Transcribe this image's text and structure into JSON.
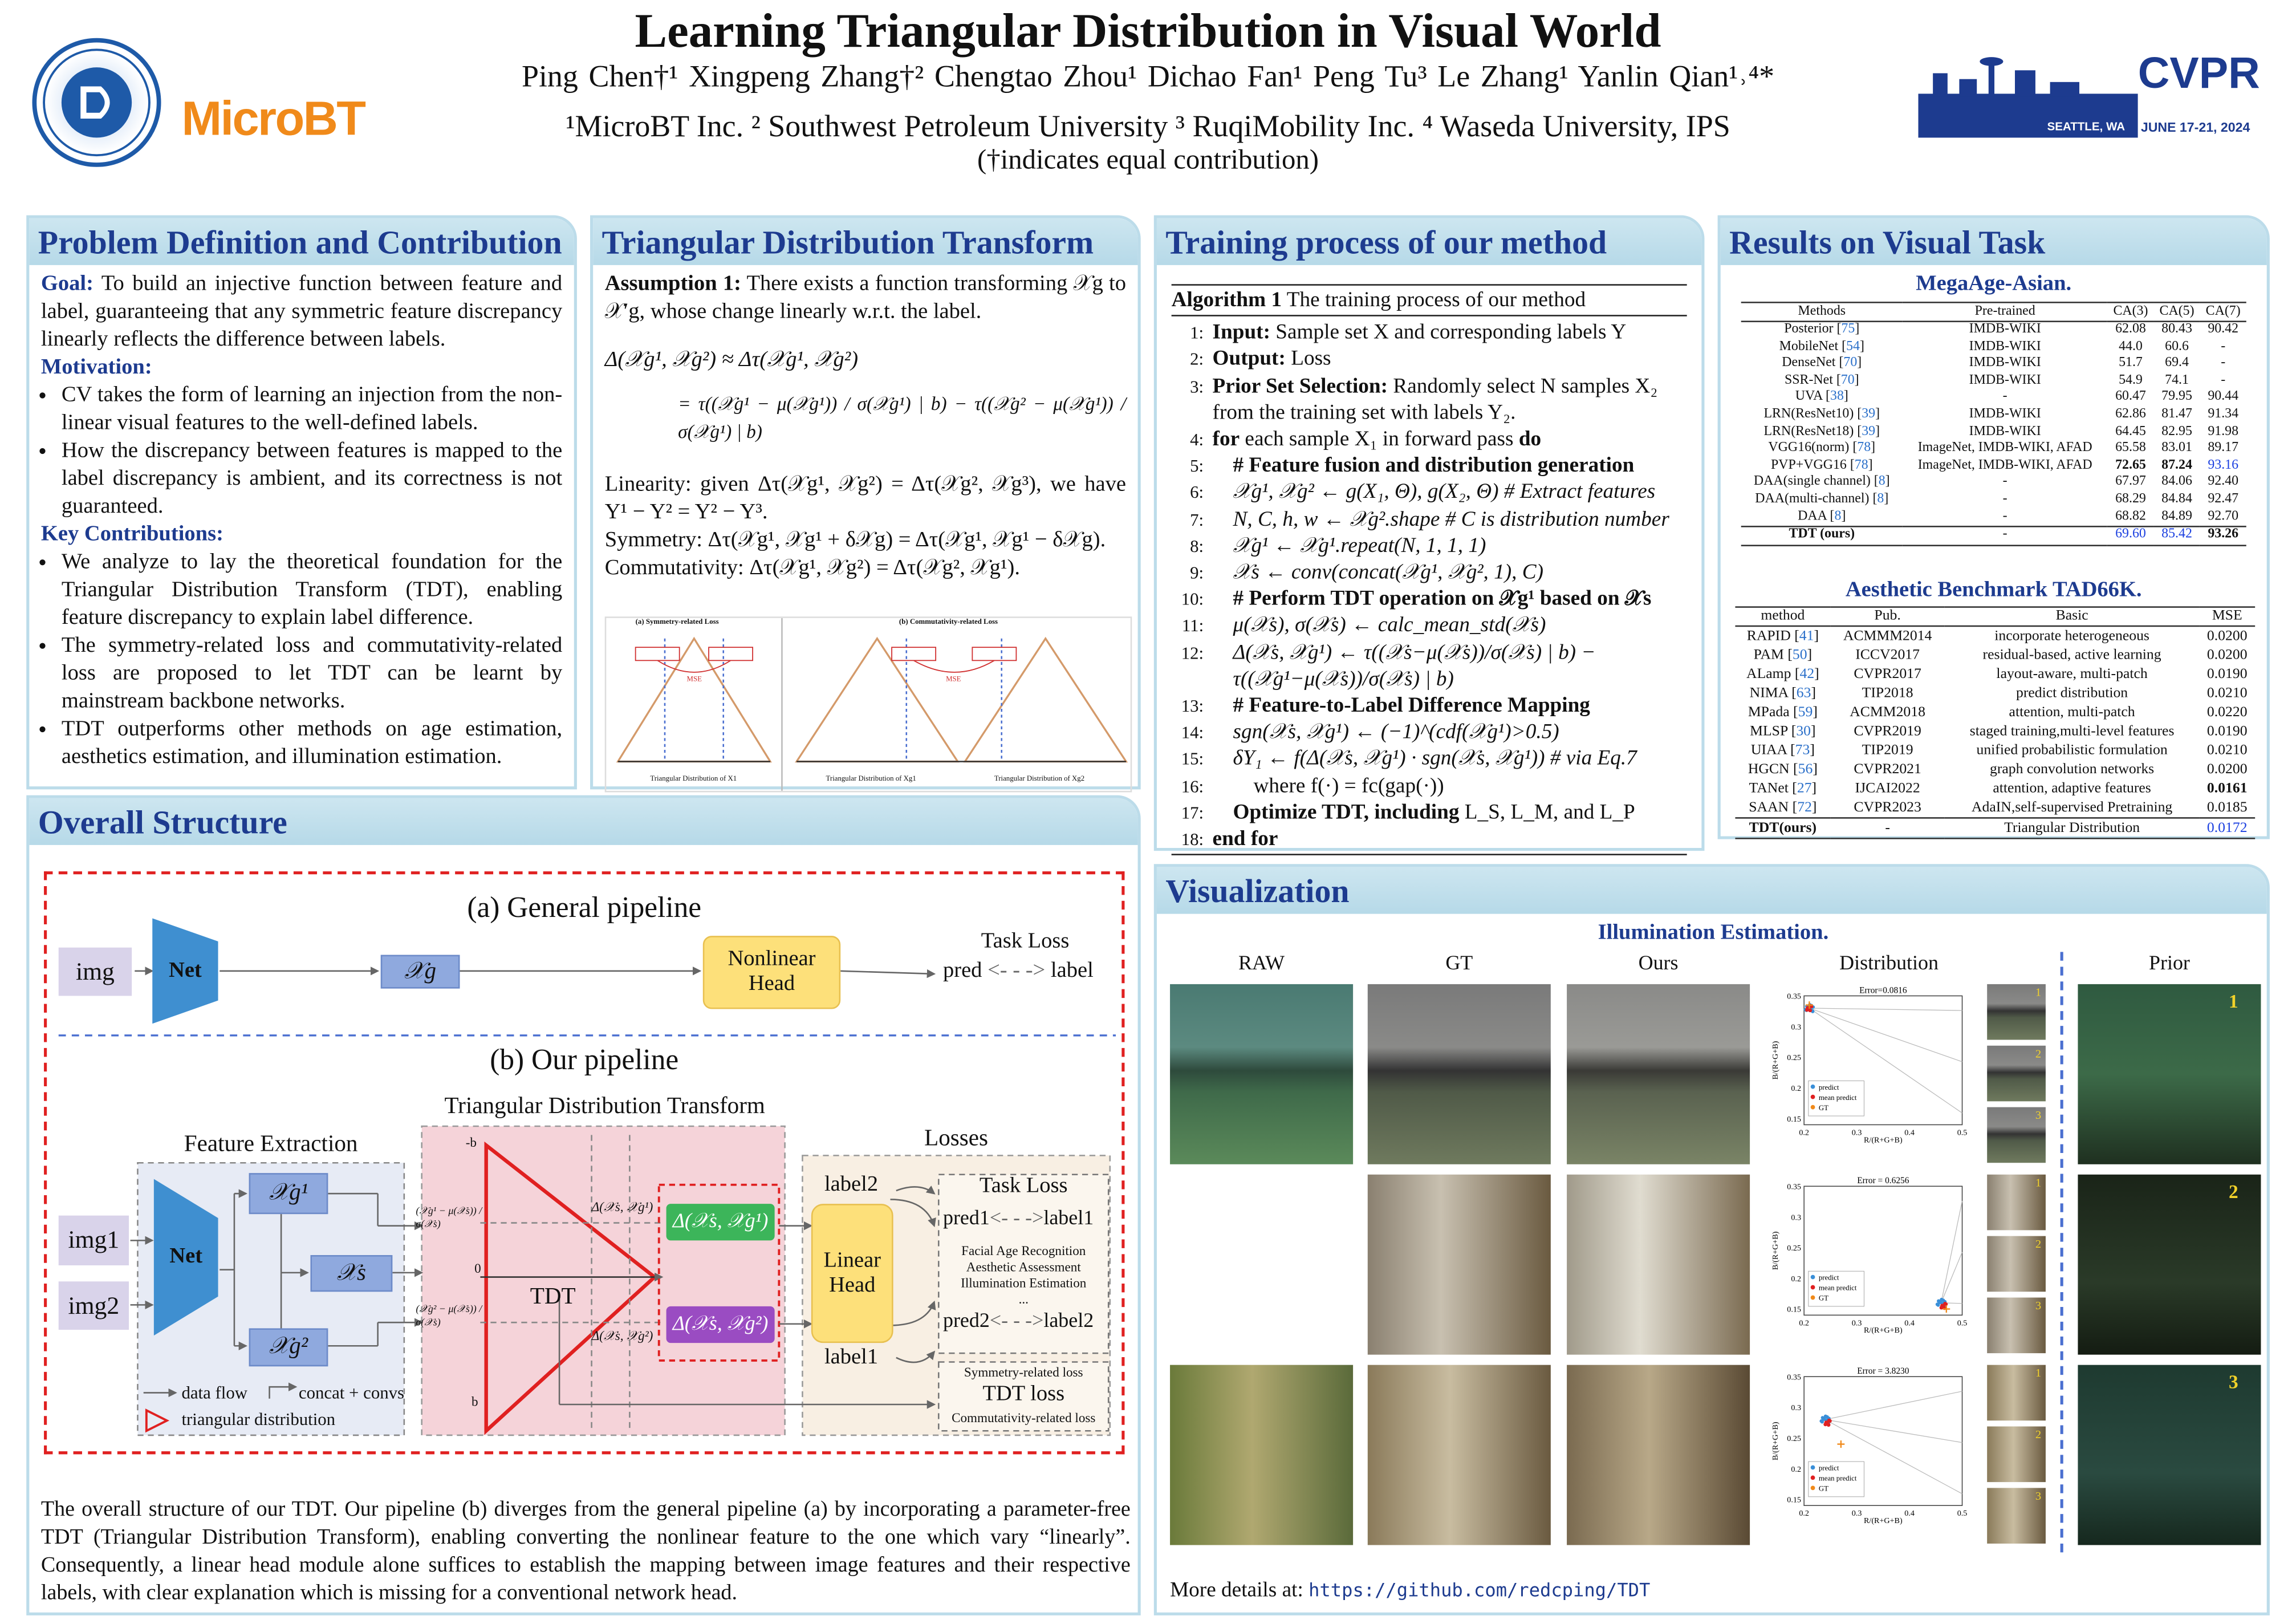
{
  "header": {
    "title": "Learning Triangular Distribution in Visual World",
    "authors": "Ping Chen†¹   Xingpeng Zhang†²   Chengtao Zhou¹   Dichao Fan¹   Peng Tu³   Le Zhang¹   Yanlin Qian¹˒⁴*",
    "affiliations": "¹MicroBT Inc.   ² Southwest Petroleum University   ³ RuqiMobility Inc.  ⁴ Waseda University, IPS",
    "equal": "(†indicates equal contribution)",
    "logos": {
      "swpu": "SOUTHWEST PETROLEUM UNIVERSITY",
      "microbt": "MicroBT",
      "cvpr": "CVPR",
      "cvpr_place": "SEATTLE, WA",
      "cvpr_date": "JUNE 17-21, 2024"
    }
  },
  "problem": {
    "title": "Problem Definition and Contribution",
    "goal_label": "Goal:",
    "goal": "To build an injective function between feature and label, guaranteeing that any symmetric feature discrepancy linearly reflects the difference between labels.",
    "motivation_label": "Motivation:",
    "motivation": [
      "CV takes the form of learning an injection from the non-linear visual features to the well-defined labels.",
      "How the discrepancy between features is mapped to the label discrepancy is ambient, and its correctness is not guaranteed."
    ],
    "contrib_label": "Key Contributions:",
    "contributions": [
      "We analyze to lay the theoretical foundation for the Triangular Distribution Transform (TDT), enabling feature discrepancy to explain label difference.",
      "The symmetry-related loss and commutativity-related loss are proposed to let TDT can be learnt by mainstream backbone networks.",
      "TDT outperforms other methods on age estimation, aesthetics estimation, and illumination estimation."
    ]
  },
  "tdt": {
    "title": "Triangular Distribution Transform",
    "assumption_label": "Assumption 1:",
    "assumption": "There exists a function transforming 𝒳g to 𝒳′g, whose change linearly w.r.t. the label.",
    "eq1": "Δ(𝒳g¹, 𝒳g²) ≈ Δτ(𝒳g¹, 𝒳g²)",
    "eq2": "= τ((𝒳g¹ − μ(𝒳g¹)) / σ(𝒳g¹) | b) − τ((𝒳g² − μ(𝒳g¹)) / σ(𝒳g¹) | b)",
    "linearity": "Linearity:  given Δτ(𝒳g¹, 𝒳g²) = Δτ(𝒳g², 𝒳g³), we have Y¹ − Y² = Y² − Y³.",
    "symmetry": "Symmetry: Δτ(𝒳g¹, 𝒳g¹ + δ𝒳g) = Δτ(𝒳g¹, 𝒳g¹ − δ𝒳g).",
    "commutativity": "Commutativity: Δτ(𝒳g¹, 𝒳g²) = Δτ(𝒳g², 𝒳g¹).",
    "fig_a": "(a) Symmetry-related Loss",
    "fig_b": "(b) Commutativity-related Loss",
    "fig_mse": "MSE",
    "fig_xa": "Triangular Distribution of X1",
    "fig_xb1": "Triangular Distribution of Xg1",
    "fig_xb2": "Triangular Distribution of Xg2"
  },
  "training": {
    "title": "Training process of our method",
    "alg_label": "Algorithm 1",
    "alg_caption": "The training process of our method",
    "lines": [
      {
        "n": "1:",
        "level": 0,
        "bold": "Input:",
        "text": " Sample set X and corresponding labels Y"
      },
      {
        "n": "2:",
        "level": 0,
        "bold": "Output:",
        "text": " Loss"
      },
      {
        "n": "3:",
        "level": 0,
        "bold": "Prior Set Selection:",
        "text": " Randomly select N samples X₂"
      },
      {
        "n": "",
        "level": 0,
        "bold": "",
        "text": "from the training set with labels Y₂."
      },
      {
        "n": "4:",
        "level": 0,
        "bold": "for",
        "text": " each sample X₁ in forward pass ",
        "bold2": "do"
      },
      {
        "n": "5:",
        "level": 1,
        "bold": "# Feature fusion and distribution generation",
        "text": ""
      },
      {
        "n": "6:",
        "level": 1,
        "bold": "",
        "text": "𝒳g¹, 𝒳g² ← g(X₁, Θ), g(X₂, Θ) # Extract features"
      },
      {
        "n": "7:",
        "level": 1,
        "bold": "",
        "text": "N, C, h, w ← 𝒳g².shape # C is distribution number"
      },
      {
        "n": "8:",
        "level": 1,
        "bold": "",
        "text": "𝒳g¹ ← 𝒳g¹.repeat(N, 1, 1, 1)"
      },
      {
        "n": "9:",
        "level": 1,
        "bold": "",
        "text": "𝒳s ← conv(concat(𝒳g¹, 𝒳g², 1), C)"
      },
      {
        "n": "10:",
        "level": 1,
        "bold": "# Perform TDT operation on 𝒳g¹ based on 𝒳s",
        "text": ""
      },
      {
        "n": "11:",
        "level": 1,
        "bold": "",
        "text": "μ(𝒳s), σ(𝒳s) ← calc_mean_std(𝒳s)"
      },
      {
        "n": "12:",
        "level": 1,
        "bold": "",
        "text": "Δ(𝒳s, 𝒳g¹) ← τ((𝒳s−μ(𝒳s))/σ(𝒳s) | b) − τ((𝒳g¹−μ(𝒳s))/σ(𝒳s) | b)"
      },
      {
        "n": "13:",
        "level": 1,
        "bold": "# Feature-to-Label Difference Mapping",
        "text": ""
      },
      {
        "n": "14:",
        "level": 1,
        "bold": "",
        "text": "sgn(𝒳s, 𝒳g¹) ← (−1)^(cdf(𝒳g¹)>0.5)"
      },
      {
        "n": "15:",
        "level": 1,
        "bold": "",
        "text": "δY₁ ← f(Δ(𝒳s, 𝒳g¹) · sgn(𝒳s, 𝒳g¹)) # via Eq.7"
      },
      {
        "n": "16:",
        "level": 2,
        "bold": "",
        "text": "where f(·) = fc(gap(·))"
      },
      {
        "n": "17:",
        "level": 1,
        "bold": "Optimize TDT, including",
        "text": " L_S, L_M, and L_P"
      },
      {
        "n": "18:",
        "level": 0,
        "bold": "end for",
        "text": ""
      }
    ]
  },
  "results": {
    "title": "Results on Visual Task",
    "megaage": {
      "title": "MegaAge-Asian.",
      "columns": [
        "Methods",
        "Pre-trained",
        "CA(3)",
        "CA(5)",
        "CA(7)"
      ],
      "rows": [
        {
          "method": "Posterior",
          "ref": "75",
          "pre": "IMDB-WIKI",
          "v": [
            "62.08",
            "80.43",
            "90.42"
          ]
        },
        {
          "method": "MobileNet",
          "ref": "54",
          "pre": "IMDB-WIKI",
          "v": [
            "44.0",
            "60.6",
            "-"
          ]
        },
        {
          "method": "DenseNet",
          "ref": "70",
          "pre": "IMDB-WIKI",
          "v": [
            "51.7",
            "69.4",
            "-"
          ]
        },
        {
          "method": "SSR-Net",
          "ref": "70",
          "pre": "IMDB-WIKI",
          "v": [
            "54.9",
            "74.1",
            "-"
          ]
        },
        {
          "method": "UVA",
          "ref": "38",
          "pre": "-",
          "v": [
            "60.47",
            "79.95",
            "90.44"
          ]
        },
        {
          "method": "LRN(ResNet10)",
          "ref": "39",
          "pre": "IMDB-WIKI",
          "v": [
            "62.86",
            "81.47",
            "91.34"
          ]
        },
        {
          "method": "LRN(ResNet18)",
          "ref": "39",
          "pre": "IMDB-WIKI",
          "v": [
            "64.45",
            "82.95",
            "91.98"
          ]
        },
        {
          "method": "VGG16(norm)",
          "ref": "78",
          "pre": "ImageNet, IMDB-WIKI, AFAD",
          "v": [
            "65.58",
            "83.01",
            "89.17"
          ]
        },
        {
          "method": "PVP+VGG16",
          "ref": "78",
          "pre": "ImageNet, IMDB-WIKI, AFAD",
          "v": [
            "72.65",
            "87.24",
            "93.16"
          ],
          "style": [
            "bold",
            "bold",
            "blue"
          ]
        },
        {
          "method": "DAA(single channel)",
          "ref": "8",
          "pre": "-",
          "v": [
            "67.97",
            "84.06",
            "92.40"
          ]
        },
        {
          "method": "DAA(multi-channel)",
          "ref": "8",
          "pre": "-",
          "v": [
            "68.29",
            "84.84",
            "92.47"
          ]
        },
        {
          "method": "DAA",
          "ref": "8",
          "pre": "-",
          "v": [
            "68.82",
            "84.89",
            "92.70"
          ]
        },
        {
          "method": "TDT (ours)",
          "ref": "",
          "pre": "-",
          "v": [
            "69.60",
            "85.42",
            "93.26"
          ],
          "style": [
            "blue",
            "blue",
            "bold"
          ],
          "ours": true
        }
      ]
    },
    "tad": {
      "title": "Aesthetic Benchmark TAD66K.",
      "columns": [
        "method",
        "Pub.",
        "Basic",
        "MSE"
      ],
      "rows": [
        {
          "method": "RAPID",
          "ref": "41",
          "pub": "ACMMM2014",
          "basic": "incorporate heterogeneous",
          "mse": "0.0200"
        },
        {
          "method": "PAM",
          "ref": "50",
          "pub": "ICCV2017",
          "basic": "residual-based, active learning",
          "mse": "0.0200"
        },
        {
          "method": "ALamp",
          "ref": "42",
          "pub": "CVPR2017",
          "basic": "layout-aware, multi-patch",
          "mse": "0.0190"
        },
        {
          "method": "NIMA",
          "ref": "63",
          "pub": "TIP2018",
          "basic": "predict distribution",
          "mse": "0.0210"
        },
        {
          "method": "MPada",
          "ref": "59",
          "pub": "ACMM2018",
          "basic": "attention, multi-patch",
          "mse": "0.0220"
        },
        {
          "method": "MLSP",
          "ref": "30",
          "pub": "CVPR2019",
          "basic": "staged training,multi-level features",
          "mse": "0.0190"
        },
        {
          "method": "UIAA",
          "ref": "73",
          "pub": "TIP2019",
          "basic": "unified probabilistic formulation",
          "mse": "0.0210"
        },
        {
          "method": "HGCN",
          "ref": "56",
          "pub": "CVPR2021",
          "basic": "graph convolution networks",
          "mse": "0.0200"
        },
        {
          "method": "TANet",
          "ref": "27",
          "pub": "IJCAI2022",
          "basic": "attention, adaptive features",
          "mse": "0.0161",
          "style": "bold"
        },
        {
          "method": "SAAN",
          "ref": "72",
          "pub": "CVPR2023",
          "basic": "AdaIN,self-supervised Pretraining",
          "mse": "0.0185"
        },
        {
          "method": "TDT(ours)",
          "ref": "",
          "pub": "-",
          "basic": "Triangular Distribution",
          "mse": "0.0172",
          "style": "blue",
          "ours": true
        }
      ]
    }
  },
  "overall": {
    "title": "Overall Structure",
    "a_title": "(a) General pipeline",
    "img": "img",
    "net": "Net",
    "xg": "𝒳g",
    "nonlinear_head": "Nonlinear Head",
    "task_loss": "Task Loss",
    "pred": "pred",
    "label": "label",
    "b_title": "(b) Our pipeline",
    "tdt_title": "Triangular Distribution Transform",
    "feature_extraction": "Feature Extraction",
    "img1": "img1",
    "img2": "img2",
    "xg1": "𝒳g¹",
    "xs": "𝒳s",
    "xg2": "𝒳g²",
    "legend_flow": "data flow",
    "legend_concat": "concat + convs",
    "legend_tri": "triangular distribution",
    "tdt": "TDT",
    "neg_b": "-b",
    "zero": "0",
    "pos_b": "b",
    "norm1": "(𝒳g¹ − μ(𝒳s)) / σ(𝒳s)",
    "norm2": "(𝒳g² − μ(𝒳s)) / σ(𝒳s)",
    "d1_small": "Δ(𝒳s, 𝒳g¹)",
    "d2_small": "Δ(𝒳s, 𝒳g²)",
    "d1": "Δ(𝒳s, 𝒳g¹)",
    "d2": "Δ(𝒳s, 𝒳g²)",
    "losses": "Losses",
    "label2": "label2",
    "label1": "label1",
    "linear_head": "Linear Head",
    "pred1": "pred1",
    "tl_label1": "label1",
    "pred2": "pred2",
    "tl_label2": "label2",
    "tasks": [
      "Facial Age Recognition",
      "Aesthetic Assessment",
      "Illumination Estimation",
      "..."
    ],
    "sym_loss": "Symmetry-related loss",
    "tdt_loss": "TDT loss",
    "comm_loss": "Commutativity-related loss",
    "caption": "The overall structure of our TDT. Our pipeline (b) diverges from the general pipeline (a) by incorporating a parameter-free TDT (Triangular Distribution Transform), enabling converting the nonlinear feature to the one which vary “linearly”. Consequently, a linear head module alone suffices to establish the mapping between image features and their respective labels, with clear explanation which is missing for a conventional network head."
  },
  "visualization": {
    "title": "Visualization",
    "subtitle": "Illumination Estimation.",
    "columns": [
      "RAW",
      "GT",
      "Ours",
      "Distribution",
      "Prior"
    ],
    "plots": [
      {
        "error": "Error=0.0816",
        "predict": [
          0.21,
          0.33
        ],
        "mean": [
          0.21,
          0.33
        ],
        "gt": [
          0.21,
          0.335
        ]
      },
      {
        "error": "Error = 0.6256",
        "predict": [
          0.46,
          0.16
        ],
        "mean": [
          0.465,
          0.155
        ],
        "gt": [
          0.47,
          0.15
        ]
      },
      {
        "error": "Error = 3.8230",
        "predict": [
          0.24,
          0.28
        ],
        "mean": [
          0.245,
          0.275
        ],
        "gt": [
          0.27,
          0.24
        ]
      }
    ],
    "plot_ylabel": "B/(R+G+B)",
    "plot_xlabel": "R/(R+G+B)",
    "yticks": [
      "0.35",
      "0.3",
      "0.25",
      "0.2",
      "0.15"
    ],
    "xticks": [
      "0.2",
      "0.3",
      "0.4",
      "0.5"
    ],
    "legend": [
      "predict",
      "mean predict",
      "GT"
    ],
    "colors": {
      "predict": "#3a8fd8",
      "mean": "#e02020",
      "gt": "#f08a1a"
    },
    "thumb_numbers": [
      "1",
      "2",
      "3"
    ],
    "prior_numbers": [
      "1",
      "2",
      "3"
    ],
    "more_label": "More details at:",
    "more_link": "https://github.com/redcping/TDT"
  }
}
